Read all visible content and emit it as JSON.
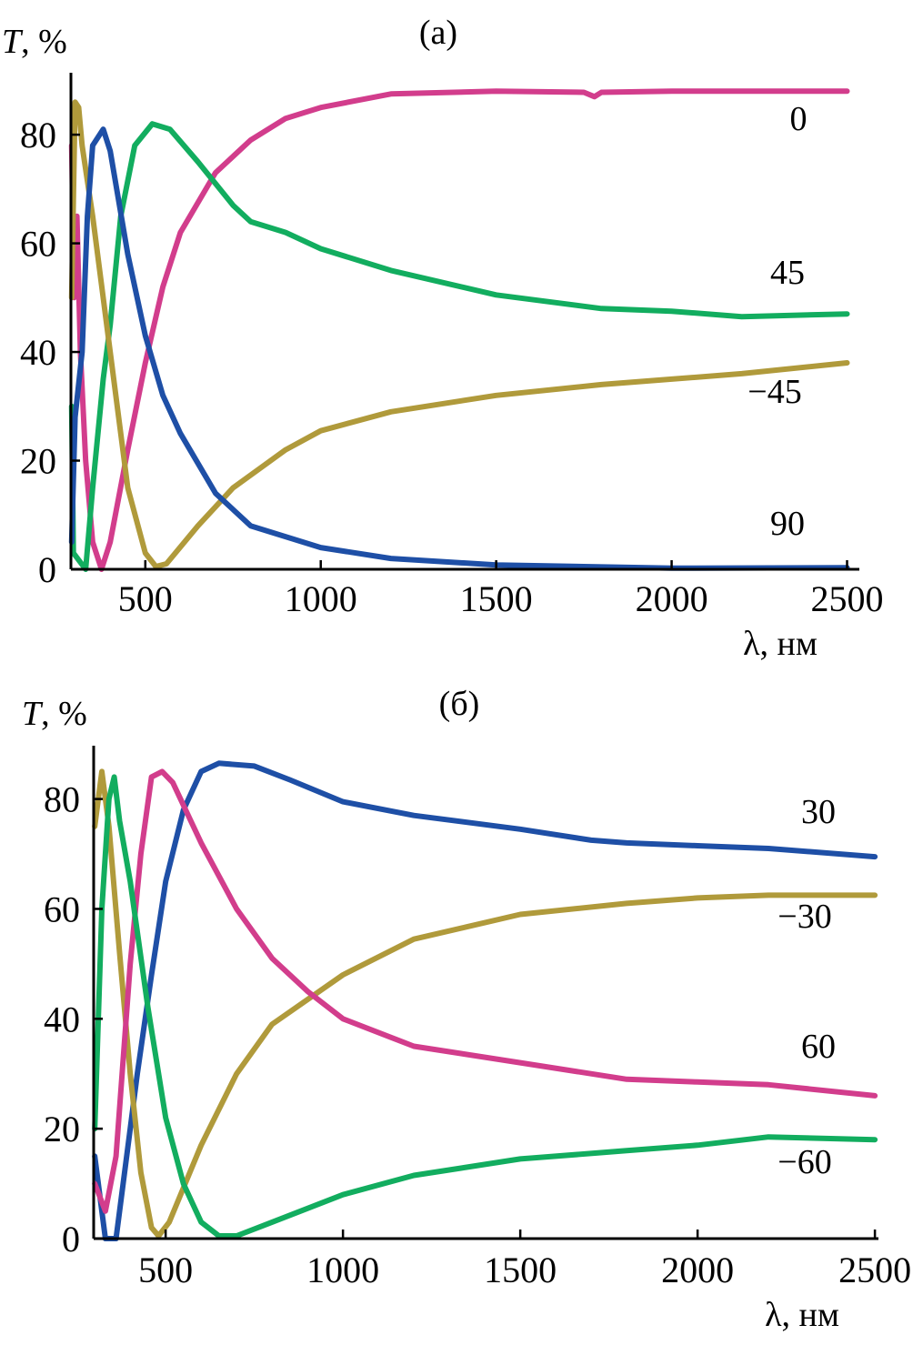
{
  "chart_data": [
    {
      "type": "line",
      "title": "(a)",
      "ylabel_italic": "T",
      "ylabel_rest": ", %",
      "xlabel": "λ, нм",
      "xlim": [
        288,
        2535
      ],
      "ylim": [
        0,
        91.4
      ],
      "xticks": [
        500,
        1000,
        1500,
        2000,
        2500
      ],
      "yticks": [
        0,
        20,
        40,
        60,
        80
      ],
      "grid": false,
      "series": [
        {
          "name": "0",
          "color": "#d23d8c",
          "points": [
            [
              290,
              78
            ],
            [
              297,
              50
            ],
            [
              305,
              65
            ],
            [
              315,
              40
            ],
            [
              330,
              20
            ],
            [
              350,
              5
            ],
            [
              375,
              0
            ],
            [
              400,
              5
            ],
            [
              450,
              22
            ],
            [
              500,
              38
            ],
            [
              550,
              52
            ],
            [
              600,
              62
            ],
            [
              700,
              73
            ],
            [
              800,
              79
            ],
            [
              900,
              83
            ],
            [
              1000,
              85
            ],
            [
              1200,
              87.5
            ],
            [
              1500,
              88
            ],
            [
              1750,
              87.8
            ],
            [
              1780,
              87
            ],
            [
              1800,
              87.8
            ],
            [
              2000,
              88
            ],
            [
              2500,
              88
            ]
          ]
        },
        {
          "name": "45",
          "color": "#12ad5f",
          "points": [
            [
              290,
              30
            ],
            [
              295,
              3
            ],
            [
              330,
              0
            ],
            [
              350,
              15
            ],
            [
              380,
              35
            ],
            [
              400,
              45
            ],
            [
              430,
              65
            ],
            [
              470,
              78
            ],
            [
              520,
              82
            ],
            [
              570,
              81
            ],
            [
              650,
              75
            ],
            [
              750,
              67
            ],
            [
              800,
              64
            ],
            [
              900,
              62
            ],
            [
              1000,
              59
            ],
            [
              1200,
              55
            ],
            [
              1500,
              50.5
            ],
            [
              1800,
              48
            ],
            [
              2000,
              47.5
            ],
            [
              2200,
              46.5
            ],
            [
              2500,
              47
            ]
          ]
        },
        {
          "name": "−45",
          "color": "#b09a3b",
          "points": [
            [
              290,
              50
            ],
            [
              300,
              86
            ],
            [
              310,
              85
            ],
            [
              320,
              78
            ],
            [
              350,
              65
            ],
            [
              400,
              40
            ],
            [
              450,
              15
            ],
            [
              500,
              3
            ],
            [
              530,
              0.5
            ],
            [
              560,
              1
            ],
            [
              650,
              8
            ],
            [
              750,
              15
            ],
            [
              900,
              22
            ],
            [
              1000,
              25.5
            ],
            [
              1200,
              29
            ],
            [
              1500,
              32
            ],
            [
              1800,
              34
            ],
            [
              2000,
              35
            ],
            [
              2200,
              36
            ],
            [
              2500,
              38
            ]
          ]
        },
        {
          "name": "90",
          "color": "#1e4fa6",
          "points": [
            [
              290,
              5
            ],
            [
              300,
              28
            ],
            [
              320,
              40
            ],
            [
              335,
              65
            ],
            [
              350,
              78
            ],
            [
              380,
              81
            ],
            [
              400,
              77
            ],
            [
              450,
              58
            ],
            [
              500,
              43
            ],
            [
              550,
              32
            ],
            [
              600,
              25
            ],
            [
              700,
              14
            ],
            [
              800,
              8
            ],
            [
              1000,
              4
            ],
            [
              1200,
              2
            ],
            [
              1500,
              0.8
            ],
            [
              2000,
              0.2
            ],
            [
              2500,
              0.3
            ]
          ]
        }
      ]
    },
    {
      "type": "line",
      "title": "(б)",
      "ylabel_italic": "T",
      "ylabel_rest": ", %",
      "xlabel": "λ, нм",
      "xlim": [
        297,
        2510
      ],
      "ylim": [
        0,
        89.7
      ],
      "xticks": [
        500,
        1000,
        1500,
        2000,
        2500
      ],
      "yticks": [
        0,
        20,
        40,
        60,
        80
      ],
      "grid": false,
      "series": [
        {
          "name": "30",
          "color": "#1e4fa6",
          "points": [
            [
              300,
              15
            ],
            [
              330,
              0
            ],
            [
              360,
              0
            ],
            [
              380,
              10
            ],
            [
              420,
              30
            ],
            [
              460,
              48
            ],
            [
              500,
              65
            ],
            [
              550,
              78
            ],
            [
              600,
              85
            ],
            [
              650,
              86.5
            ],
            [
              750,
              86
            ],
            [
              850,
              83.5
            ],
            [
              1000,
              79.5
            ],
            [
              1200,
              77
            ],
            [
              1500,
              74.5
            ],
            [
              1700,
              72.5
            ],
            [
              1800,
              72
            ],
            [
              2000,
              71.5
            ],
            [
              2200,
              71
            ],
            [
              2500,
              69.5
            ]
          ]
        },
        {
          "name": "−30",
          "color": "#b09a3b",
          "points": [
            [
              300,
              75
            ],
            [
              320,
              85
            ],
            [
              340,
              75
            ],
            [
              370,
              52
            ],
            [
              400,
              30
            ],
            [
              430,
              12
            ],
            [
              460,
              2
            ],
            [
              480,
              0.5
            ],
            [
              510,
              3
            ],
            [
              600,
              17
            ],
            [
              700,
              30
            ],
            [
              800,
              39
            ],
            [
              1000,
              48
            ],
            [
              1200,
              54.5
            ],
            [
              1500,
              59
            ],
            [
              1800,
              61
            ],
            [
              2000,
              62
            ],
            [
              2200,
              62.5
            ],
            [
              2500,
              62.5
            ]
          ]
        },
        {
          "name": "60",
          "color": "#d23d8c",
          "points": [
            [
              300,
              10
            ],
            [
              330,
              5
            ],
            [
              360,
              15
            ],
            [
              400,
              50
            ],
            [
              430,
              70
            ],
            [
              460,
              84
            ],
            [
              490,
              85
            ],
            [
              520,
              83
            ],
            [
              600,
              72
            ],
            [
              700,
              60
            ],
            [
              800,
              51
            ],
            [
              900,
              45
            ],
            [
              1000,
              40
            ],
            [
              1200,
              35
            ],
            [
              1500,
              32
            ],
            [
              1800,
              29
            ],
            [
              2000,
              28.5
            ],
            [
              2200,
              28
            ],
            [
              2500,
              26
            ]
          ]
        },
        {
          "name": "−60",
          "color": "#12ad5f",
          "points": [
            [
              300,
              20
            ],
            [
              320,
              60
            ],
            [
              340,
              80
            ],
            [
              355,
              84
            ],
            [
              370,
              76
            ],
            [
              400,
              65
            ],
            [
              450,
              42
            ],
            [
              500,
              22
            ],
            [
              550,
              10
            ],
            [
              600,
              3
            ],
            [
              650,
              0.5
            ],
            [
              700,
              0.5
            ],
            [
              800,
              3
            ],
            [
              1000,
              8
            ],
            [
              1200,
              11.5
            ],
            [
              1500,
              14.5
            ],
            [
              1800,
              16
            ],
            [
              2000,
              17
            ],
            [
              2200,
              18.5
            ],
            [
              2500,
              18
            ]
          ]
        }
      ]
    }
  ]
}
